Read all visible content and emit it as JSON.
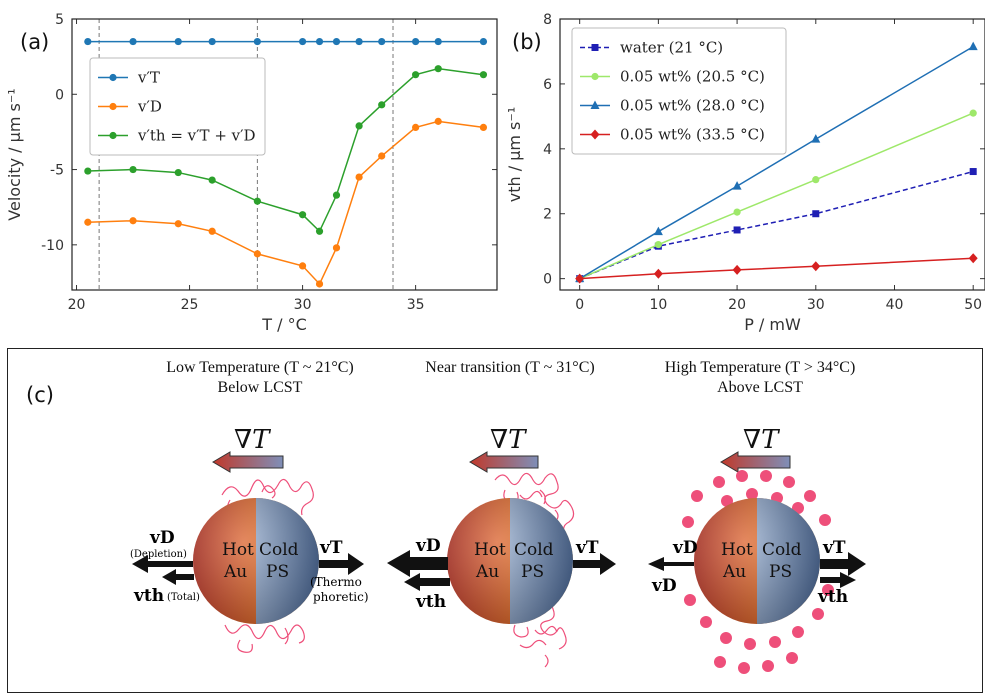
{
  "panel_labels": {
    "a": "(a)",
    "b": "(b)",
    "c": "(c)"
  },
  "chart_data": [
    {
      "type": "line",
      "panel": "(a)",
      "xlabel": "T / °C",
      "ylabel": "Velocity / μm s⁻¹",
      "xlim": [
        19.8,
        38.6
      ],
      "ylim": [
        -13,
        5
      ],
      "xticks": [
        20,
        25,
        30,
        35
      ],
      "yticks": [
        5,
        0,
        -5,
        -10
      ],
      "vlines": [
        21,
        28,
        34
      ],
      "legend_position": "upper-left",
      "series": [
        {
          "name": "v′T",
          "color": "#1f77b4",
          "x": [
            20.5,
            22.5,
            24.5,
            26,
            28,
            30,
            30.75,
            31.5,
            32.5,
            33.5,
            35,
            36,
            38
          ],
          "y": [
            3.5,
            3.5,
            3.5,
            3.5,
            3.5,
            3.5,
            3.5,
            3.5,
            3.5,
            3.5,
            3.5,
            3.5,
            3.5
          ]
        },
        {
          "name": "v′D",
          "color": "#ff7f0e",
          "x": [
            20.5,
            22.5,
            24.5,
            26,
            28,
            30,
            30.75,
            31.5,
            32.5,
            33.5,
            35,
            36,
            38
          ],
          "y": [
            -8.5,
            -8.4,
            -8.6,
            -9.1,
            -10.6,
            -11.4,
            -12.6,
            -10.2,
            -5.5,
            -4.1,
            -2.2,
            -1.8,
            -2.2
          ]
        },
        {
          "name": "v′th = v′T + v′D",
          "color": "#2ca02c",
          "x": [
            20.5,
            22.5,
            24.5,
            26,
            28,
            30,
            30.75,
            31.5,
            32.5,
            33.5,
            35,
            36,
            38
          ],
          "y": [
            -5.1,
            -5.0,
            -5.2,
            -5.7,
            -7.1,
            -8.0,
            -9.1,
            -6.7,
            -2.1,
            -0.7,
            1.3,
            1.7,
            1.3
          ]
        }
      ]
    },
    {
      "type": "line",
      "panel": "(b)",
      "xlabel": "P / mW",
      "ylabel": "vth / μm s⁻¹",
      "xlim": [
        -2.5,
        51.5
      ],
      "ylim": [
        -0.35,
        8
      ],
      "xticks": [
        0,
        10,
        20,
        30,
        40,
        50
      ],
      "yticks": [
        0,
        2,
        4,
        6,
        8
      ],
      "legend_position": "upper-left",
      "series": [
        {
          "name": "water (21 °C)",
          "color": "#1f1fb4",
          "dash": true,
          "marker": "square",
          "x": [
            0,
            10,
            20,
            30,
            50
          ],
          "y": [
            0,
            1.0,
            1.5,
            2.0,
            3.3
          ]
        },
        {
          "name": "0.05 wt% (20.5 °C)",
          "color": "#9ee86a",
          "dash": false,
          "marker": "circle",
          "x": [
            0,
            10,
            20,
            30,
            50
          ],
          "y": [
            0,
            1.05,
            2.05,
            3.05,
            5.1
          ]
        },
        {
          "name": "0.05 wt% (28.0 °C)",
          "color": "#1f6fb4",
          "dash": false,
          "marker": "triangle",
          "x": [
            0,
            10,
            20,
            30,
            50
          ],
          "y": [
            0,
            1.45,
            2.85,
            4.3,
            7.15
          ]
        },
        {
          "name": "0.05 wt% (33.5 °C)",
          "color": "#d62020",
          "dash": false,
          "marker": "diamond",
          "x": [
            0,
            10,
            20,
            30,
            50
          ],
          "y": [
            0,
            0.15,
            0.27,
            0.38,
            0.63
          ]
        }
      ]
    }
  ],
  "panel_c": {
    "captions": [
      {
        "line1": "Low Temperature (T ~ 21°C)",
        "line2": "Below LCST"
      },
      {
        "line1": "Near transition (T ~ 31°C)",
        "line2": ""
      },
      {
        "line1": "High Temperature (T > 34°C)",
        "line2": "Above LCST"
      }
    ],
    "gradient_label": "∇T",
    "hot_label": [
      "Hot",
      "Au"
    ],
    "cold_label": [
      "Cold",
      "PS"
    ],
    "vD": "vD",
    "vT": "vT",
    "vth": "vth",
    "depletion": "(Depletion)",
    "total": "(Total)",
    "thermo": [
      "(Thermo",
      "phoretic)"
    ]
  }
}
